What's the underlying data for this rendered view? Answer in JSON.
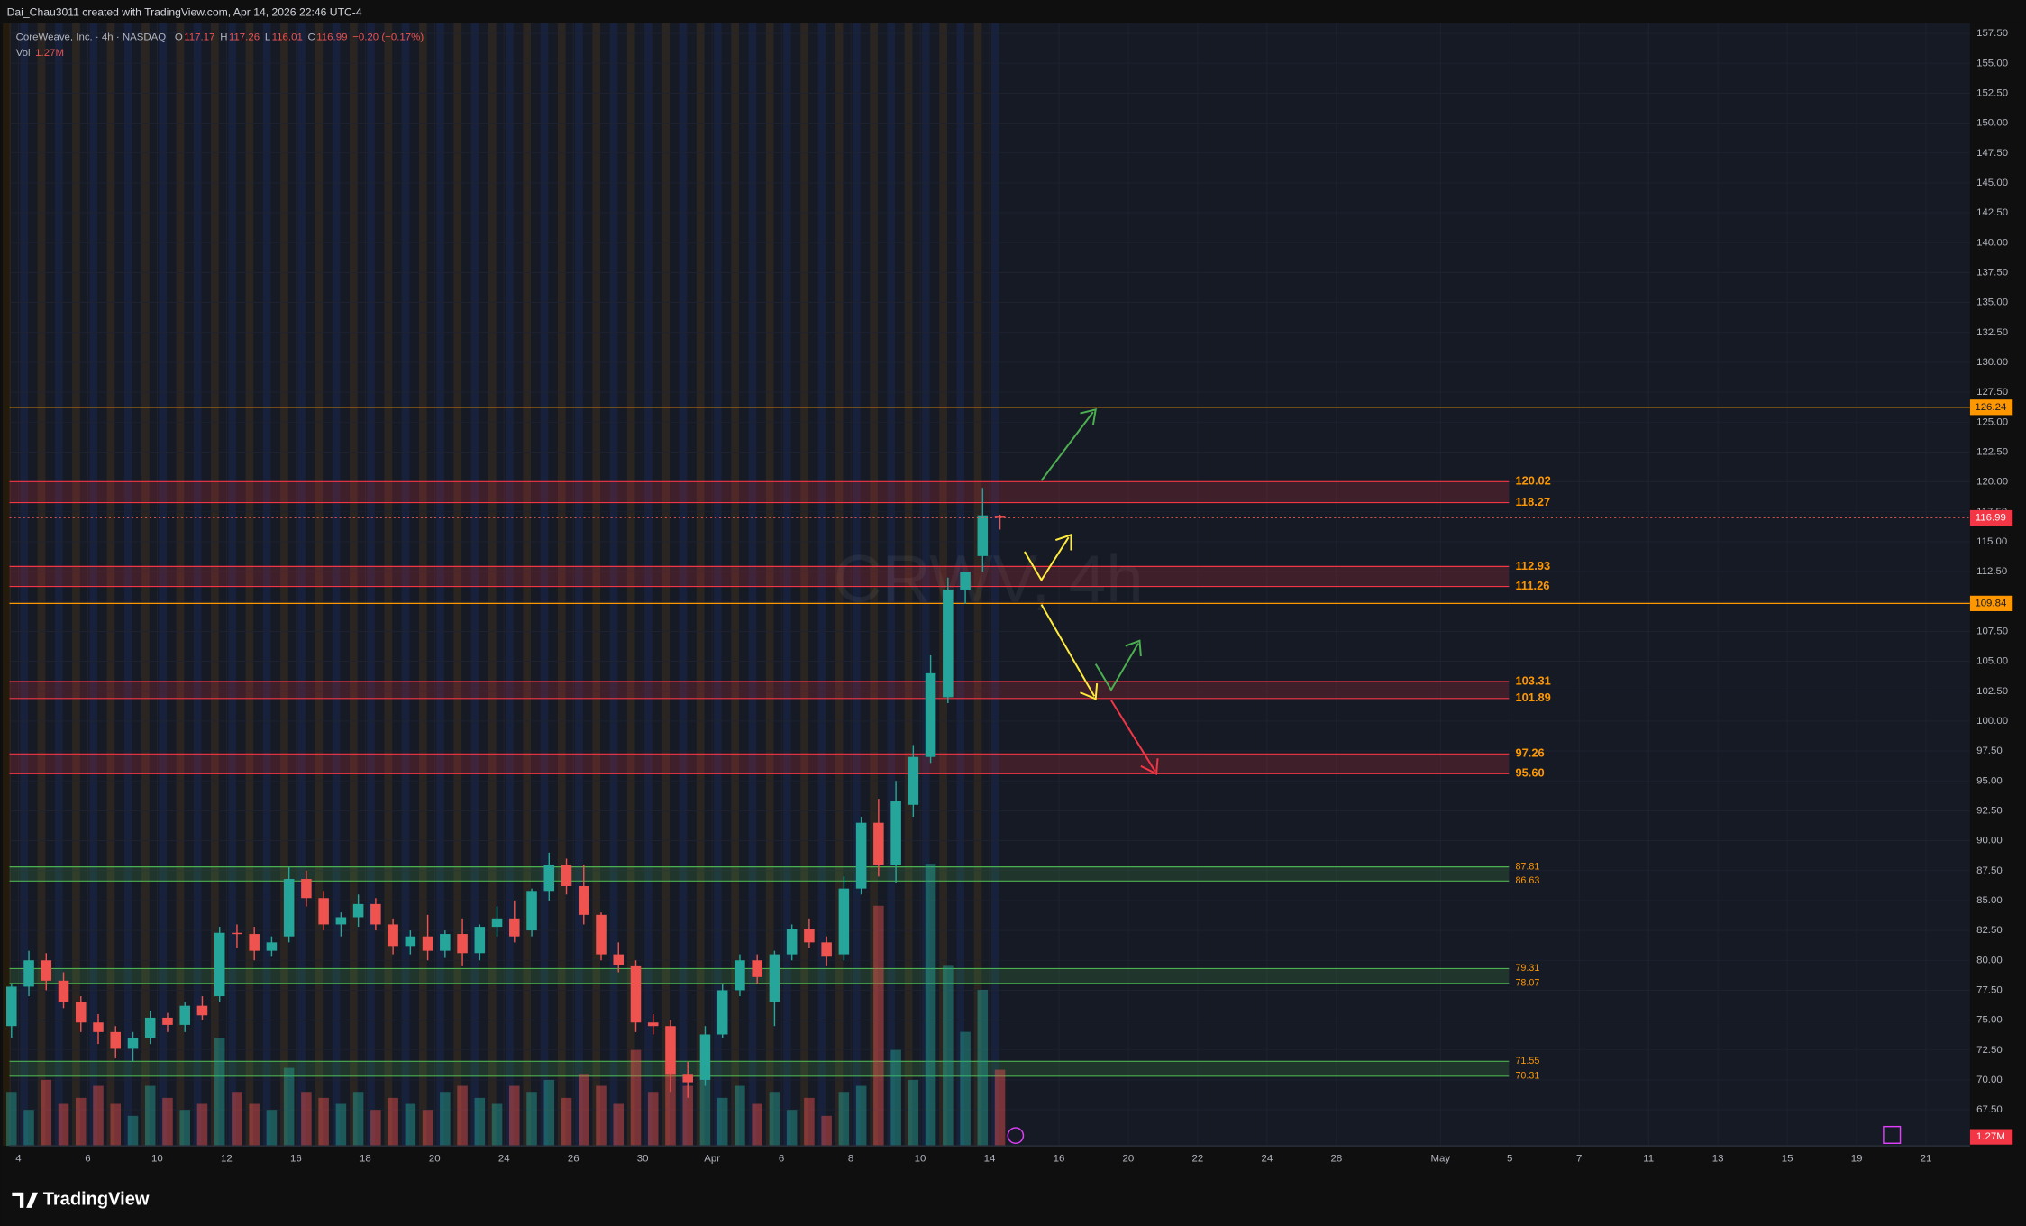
{
  "header": {
    "credit": "Dai_Chau3011 created with TradingView.com, Apr 14, 2026 22:46 UTC-4",
    "brand": "TradingView"
  },
  "chart_data": {
    "type": "candlestick",
    "symbol": "CoreWeave, Inc. · 4h · NASDAQ",
    "watermark": "CRWV, 4h",
    "legend": {
      "o": "O",
      "h": "H",
      "l": "L",
      "c": "C",
      "change": "−0.20 (−0.17%)"
    },
    "up_color": "#26a69a",
    "down_color": "#ef5350",
    "x": [
      -0.2,
      0.3,
      0.8,
      1.3,
      1.8,
      2.3,
      2.8,
      3.3,
      3.8,
      4.3,
      4.8,
      5.3,
      5.8,
      6.3,
      6.8,
      7.3,
      7.8,
      8.3,
      8.8,
      9.3,
      9.8,
      10.3,
      10.8,
      11.3,
      11.8,
      12.3,
      12.8,
      13.3,
      13.8,
      14.3,
      14.8,
      15.3,
      15.8,
      16.3,
      16.8,
      17.3,
      17.8,
      18.3,
      18.8,
      19.3,
      19.8,
      20.3,
      20.8,
      21.3,
      21.8,
      22.3,
      22.8,
      23.3,
      23.8,
      24.3,
      24.8,
      25.3,
      25.8,
      26.3,
      26.8,
      27.3,
      27.8,
      28.3
    ],
    "open": [
      74.5,
      77.8,
      80,
      78.3,
      76.5,
      74.8,
      74,
      72.6,
      73.5,
      75.2,
      74.6,
      76.2,
      77,
      82.3,
      82.2,
      80.8,
      82,
      86.8,
      85.2,
      83,
      83.6,
      84.7,
      83,
      81.2,
      82,
      80.8,
      82.2,
      80.6,
      82.8,
      83.5,
      82.5,
      85.8,
      88,
      86.2,
      83.8,
      80.5,
      79.5,
      74.8,
      74.5,
      70.5,
      70,
      73.8,
      77.5,
      80,
      76.5,
      80.5,
      82.6,
      81.5,
      80.5,
      86,
      91.5,
      88,
      93,
      97,
      102,
      111,
      113.8,
      117.17
    ],
    "high": [
      78,
      80.8,
      80.6,
      79,
      77,
      75.5,
      74.5,
      74,
      75.8,
      75.6,
      76.5,
      77,
      82.8,
      83,
      82.8,
      82,
      87.8,
      87.5,
      85.8,
      84,
      85.5,
      85.2,
      83.5,
      82.5,
      83.8,
      82.5,
      83.5,
      83,
      84.5,
      85,
      86,
      89,
      88.5,
      88,
      84,
      81.5,
      80,
      75.5,
      75,
      71.5,
      74.5,
      78,
      80.5,
      80.5,
      80.8,
      83,
      83.5,
      82,
      87,
      92,
      93.5,
      95,
      98,
      105.5,
      112,
      112.5,
      119.5,
      117.26
    ],
    "low": [
      73.5,
      77,
      77.5,
      76,
      74,
      73,
      71.8,
      71.5,
      73,
      74,
      74,
      75,
      76.5,
      81,
      80,
      80.3,
      81.5,
      84.5,
      82.5,
      82,
      82.8,
      82.5,
      80.5,
      80.5,
      80,
      80.2,
      79.5,
      80,
      82,
      81.5,
      82,
      85,
      85.5,
      83,
      80,
      79,
      74,
      73.8,
      69,
      68.5,
      69.5,
      73.5,
      77,
      78,
      74.5,
      80,
      81,
      79.5,
      80,
      85.5,
      87,
      86.5,
      92,
      96.5,
      101.5,
      109.8,
      112.5,
      116.01
    ],
    "close": [
      77.8,
      80,
      78.3,
      76.5,
      74.8,
      74,
      72.6,
      73.5,
      75.2,
      74.6,
      76.2,
      75.4,
      82.3,
      82.2,
      80.8,
      81.5,
      86.8,
      85.2,
      83,
      83.6,
      84.7,
      83,
      81.2,
      82,
      80.8,
      82.2,
      80.6,
      82.8,
      83.5,
      82,
      85.8,
      88,
      86.2,
      83.8,
      80.5,
      79.6,
      74.8,
      74.5,
      70.5,
      69.8,
      73.8,
      77.5,
      80,
      78.6,
      80.5,
      82.6,
      81.5,
      80.3,
      86,
      91.5,
      88,
      93.3,
      97,
      104,
      111,
      112.5,
      117.2,
      116.99
    ],
    "volume": {
      "name": "Vol",
      "last_label": "1.27M",
      "ylim": [
        0,
        18.7
      ],
      "values": [
        0.9,
        0.6,
        1.1,
        0.7,
        0.8,
        1.0,
        0.7,
        0.5,
        1.0,
        0.8,
        0.6,
        0.7,
        1.8,
        0.9,
        0.7,
        0.6,
        1.3,
        0.9,
        0.8,
        0.7,
        0.9,
        0.6,
        0.8,
        0.7,
        0.6,
        0.9,
        1.0,
        0.8,
        0.7,
        1.0,
        0.9,
        1.1,
        0.8,
        1.2,
        1.0,
        0.7,
        1.6,
        0.9,
        1.2,
        1.0,
        1.2,
        0.8,
        1.0,
        0.7,
        0.9,
        0.6,
        0.8,
        0.5,
        0.9,
        1.0,
        4.0,
        1.6,
        1.1,
        4.7,
        3.0,
        1.9,
        2.6,
        1.27
      ]
    },
    "xlim": [
      -0.26,
      56.27
    ],
    "ylim": [
      64.48,
      158.35
    ],
    "xticks": [
      {
        "value": 0,
        "label": "4"
      },
      {
        "value": 2,
        "label": "6"
      },
      {
        "value": 4,
        "label": "10"
      },
      {
        "value": 6,
        "label": "12"
      },
      {
        "value": 8,
        "label": "16"
      },
      {
        "value": 10,
        "label": "18"
      },
      {
        "value": 12,
        "label": "20"
      },
      {
        "value": 14,
        "label": "24"
      },
      {
        "value": 16,
        "label": "26"
      },
      {
        "value": 18,
        "label": "30"
      },
      {
        "value": 20,
        "label": "Apr"
      },
      {
        "value": 22,
        "label": "6"
      },
      {
        "value": 24,
        "label": "8"
      },
      {
        "value": 26,
        "label": "10"
      },
      {
        "value": 28,
        "label": "14"
      },
      {
        "value": 30,
        "label": "16"
      },
      {
        "value": 32,
        "label": "20"
      },
      {
        "value": 34,
        "label": "22"
      },
      {
        "value": 36,
        "label": "24"
      },
      {
        "value": 38,
        "label": "28"
      },
      {
        "value": 41,
        "label": "May"
      },
      {
        "value": 43,
        "label": "5"
      },
      {
        "value": 45,
        "label": "7"
      },
      {
        "value": 47,
        "label": "11"
      },
      {
        "value": 49,
        "label": "13"
      },
      {
        "value": 51,
        "label": "15"
      },
      {
        "value": 53,
        "label": "19"
      },
      {
        "value": 55,
        "label": "21"
      }
    ],
    "yticks": [
      {
        "value": 67.5,
        "label": "67.50"
      },
      {
        "value": 70,
        "label": "70.00"
      },
      {
        "value": 72.5,
        "label": "72.50"
      },
      {
        "value": 75,
        "label": "75.00"
      },
      {
        "value": 77.5,
        "label": "77.50"
      },
      {
        "value": 80,
        "label": "80.00"
      },
      {
        "value": 82.5,
        "label": "82.50"
      },
      {
        "value": 85,
        "label": "85.00"
      },
      {
        "value": 87.5,
        "label": "87.50"
      },
      {
        "value": 90,
        "label": "90.00"
      },
      {
        "value": 92.5,
        "label": "92.50"
      },
      {
        "value": 95,
        "label": "95.00"
      },
      {
        "value": 97.5,
        "label": "97.50"
      },
      {
        "value": 100,
        "label": "100.00"
      },
      {
        "value": 102.5,
        "label": "102.50"
      },
      {
        "value": 105,
        "label": "105.00"
      },
      {
        "value": 107.5,
        "label": "107.50"
      },
      {
        "value": 110,
        "label": "110.00"
      },
      {
        "value": 112.5,
        "label": "112.50"
      },
      {
        "value": 115,
        "label": "115.00"
      },
      {
        "value": 117.5,
        "label": "117.50"
      },
      {
        "value": 120,
        "label": "120.00"
      },
      {
        "value": 122.5,
        "label": "122.50"
      },
      {
        "value": 125,
        "label": "125.00"
      },
      {
        "value": 127.5,
        "label": "127.50"
      },
      {
        "value": 130,
        "label": "130.00"
      },
      {
        "value": 132.5,
        "label": "132.50"
      },
      {
        "value": 135,
        "label": "135.00"
      },
      {
        "value": 137.5,
        "label": "137.50"
      },
      {
        "value": 140,
        "label": "140.00"
      },
      {
        "value": 142.5,
        "label": "142.50"
      },
      {
        "value": 145,
        "label": "145.00"
      },
      {
        "value": 147.5,
        "label": "147.50"
      },
      {
        "value": 150,
        "label": "150.00"
      },
      {
        "value": 152.5,
        "label": "152.50"
      },
      {
        "value": 155,
        "label": "155.00"
      },
      {
        "value": 157.5,
        "label": "157.50"
      }
    ],
    "zones": [
      {
        "top": 120.02,
        "bottom": 118.27,
        "color": "#f23645"
      },
      {
        "top": 112.93,
        "bottom": 111.26,
        "color": "#f23645"
      },
      {
        "top": 103.31,
        "bottom": 101.89,
        "color": "#f23645"
      },
      {
        "top": 97.26,
        "bottom": {
          "value": 95.6,
          "label": "95.60"
        },
        "color": "#f23645"
      },
      {
        "top": 87.81,
        "bottom": 86.63,
        "color": "#4caf50"
      },
      {
        "top": 79.31,
        "bottom": 78.07,
        "color": "#4caf50"
      },
      {
        "top": 71.55,
        "bottom": 70.31,
        "color": "#4caf50"
      }
    ],
    "lines": [
      {
        "value": 126.24,
        "color": "#ff9800"
      },
      {
        "value": 109.84,
        "color": "#ff9800"
      }
    ]
  }
}
